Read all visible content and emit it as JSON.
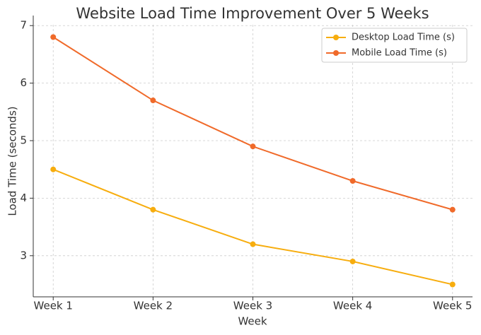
{
  "chart_data": {
    "type": "line",
    "title": "Website Load Time Improvement Over 5 Weeks",
    "x_label": "Week",
    "y_label": "Load Time (seconds)",
    "categories": [
      "Week 1",
      "Week 2",
      "Week 3",
      "Week 4",
      "Week 5"
    ],
    "series": [
      {
        "name": "Desktop Load Time (s)",
        "color": "#f7ad0e",
        "values": [
          4.5,
          3.8,
          3.2,
          2.9,
          2.5
        ]
      },
      {
        "name": "Mobile Load Time (s)",
        "color": "#f06a2a",
        "values": [
          6.8,
          5.7,
          4.9,
          4.3,
          3.8
        ]
      }
    ],
    "ylim": [
      2.285,
      7.015
    ],
    "yticks": [
      3,
      4,
      5,
      6,
      7
    ],
    "grid": true,
    "legend": "upper-right"
  }
}
